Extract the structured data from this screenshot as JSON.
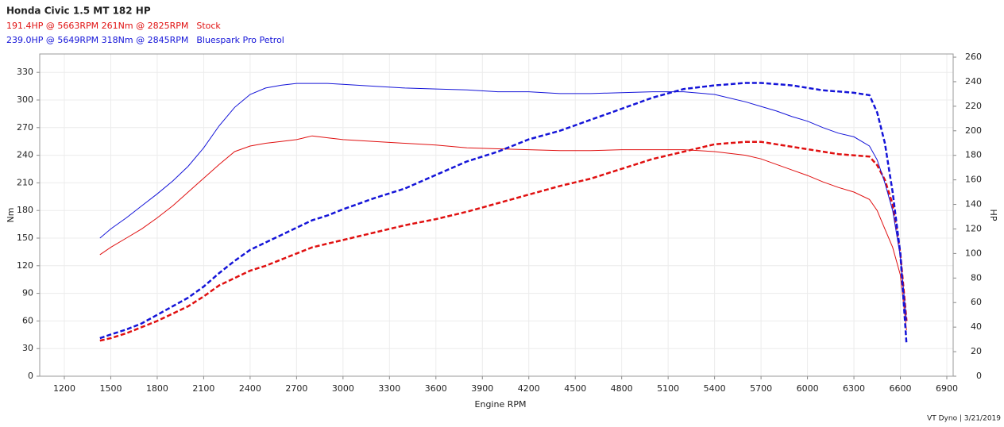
{
  "chart_data": {
    "type": "line",
    "title": "Honda Civic 1.5 MT 182 HP",
    "x_label": "Engine RPM",
    "y_label": "Nm",
    "y2_label": "HP",
    "footer": "VT Dyno | 3/21/2019",
    "xlim": [
      1041,
      6941
    ],
    "xticks": [
      1200,
      1500,
      1800,
      2100,
      2400,
      2700,
      3000,
      3300,
      3600,
      3900,
      4200,
      4500,
      4800,
      5100,
      5400,
      5700,
      6000,
      6300,
      6600,
      6900
    ],
    "ylim": [
      0,
      350
    ],
    "yticks": [
      0,
      30,
      60,
      90,
      120,
      150,
      180,
      210,
      240,
      270,
      300,
      330
    ],
    "y2lim": [
      0,
      262.6
    ],
    "y2ticks": [
      0,
      20,
      40,
      60,
      80,
      100,
      120,
      140,
      160,
      180,
      200,
      220,
      240,
      260
    ],
    "grid": true,
    "series": [
      {
        "name": "Stock",
        "summary": "191.4HP @  5663RPM  261Nm @ 2825RPM",
        "color": "#e01010",
        "x": [
          1430,
          1500,
          1600,
          1700,
          1800,
          1900,
          2000,
          2100,
          2200,
          2300,
          2400,
          2500,
          2600,
          2700,
          2800,
          2900,
          3000,
          3200,
          3400,
          3600,
          3800,
          4000,
          4200,
          4400,
          4600,
          4800,
          5000,
          5200,
          5400,
          5600,
          5700,
          5800,
          5900,
          6000,
          6100,
          6200,
          6300,
          6400,
          6450,
          6500,
          6550,
          6600,
          6640
        ],
        "torque": [
          132,
          140,
          150,
          160,
          172,
          185,
          200,
          215,
          230,
          244,
          250,
          253,
          255,
          257,
          261,
          259,
          257,
          255,
          253,
          251,
          248,
          247,
          246,
          245,
          245,
          246,
          246,
          246,
          244,
          240,
          236,
          230,
          224,
          218,
          211,
          205,
          200,
          192,
          180,
          160,
          140,
          110,
          50
        ],
        "power": [
          29,
          31,
          35,
          40,
          45,
          51,
          57,
          65,
          74,
          80,
          86,
          90,
          95,
          100,
          105,
          108,
          111,
          117,
          123,
          128,
          134,
          141,
          148,
          155,
          161,
          169,
          177,
          183,
          189,
          191,
          191,
          189,
          187,
          185,
          183,
          181,
          180,
          179,
          172,
          160,
          140,
          100,
          45
        ]
      },
      {
        "name": "Bluespark Pro Petrol",
        "summary": "239.0HP @  5649RPM  318Nm @ 2845RPM",
        "color": "#1414d8",
        "x": [
          1430,
          1500,
          1600,
          1700,
          1800,
          1900,
          2000,
          2100,
          2200,
          2300,
          2400,
          2500,
          2600,
          2700,
          2800,
          2900,
          3000,
          3200,
          3400,
          3600,
          3800,
          4000,
          4200,
          4400,
          4600,
          4800,
          5000,
          5200,
          5400,
          5600,
          5700,
          5800,
          5900,
          6000,
          6100,
          6200,
          6300,
          6400,
          6450,
          6500,
          6550,
          6600,
          6640
        ],
        "torque": [
          150,
          160,
          172,
          185,
          198,
          212,
          228,
          248,
          272,
          292,
          306,
          313,
          316,
          318,
          318,
          318,
          317,
          315,
          313,
          312,
          311,
          309,
          309,
          307,
          307,
          308,
          309,
          309,
          306,
          298,
          293,
          288,
          282,
          277,
          270,
          264,
          260,
          250,
          235,
          210,
          180,
          130,
          60
        ],
        "power": [
          31,
          34,
          38,
          43,
          50,
          57,
          64,
          73,
          84,
          94,
          103,
          109,
          115,
          121,
          127,
          131,
          136,
          145,
          153,
          164,
          175,
          183,
          193,
          200,
          209,
          218,
          227,
          234,
          237,
          239,
          239,
          238,
          237,
          235,
          233,
          232,
          231,
          229,
          215,
          190,
          150,
          100,
          26
        ]
      }
    ]
  }
}
